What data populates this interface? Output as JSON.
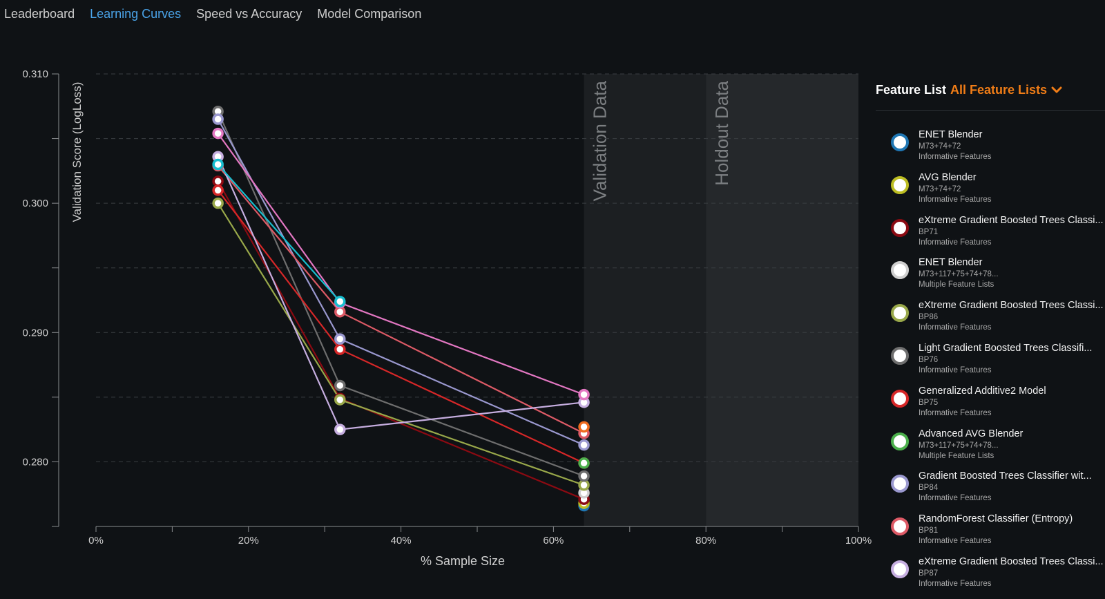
{
  "tabs": [
    {
      "label": "Leaderboard",
      "active": false
    },
    {
      "label": "Learning Curves",
      "active": true
    },
    {
      "label": "Speed vs Accuracy",
      "active": false
    },
    {
      "label": "Model Comparison",
      "active": false
    }
  ],
  "chart_data": {
    "type": "line",
    "xlabel": "% Sample Size",
    "ylabel": "Validation Score (LogLoss)",
    "x_ticks": [
      "0%",
      "20%",
      "40%",
      "60%",
      "80%",
      "100%"
    ],
    "y_ticks": [
      "0.310",
      "0.300",
      "0.290",
      "0.280"
    ],
    "xlim": [
      0,
      100
    ],
    "ylim": [
      0.275,
      0.31
    ],
    "grid": "horizontal dashed",
    "regions": [
      {
        "label": "Validation Data",
        "from": 64,
        "to": 80
      },
      {
        "label": "Holdout Data",
        "from": 80,
        "to": 100
      }
    ],
    "x": [
      16,
      32,
      64
    ],
    "series": [
      {
        "name": "ENET Blender",
        "color": "#1f77b4",
        "values": [
          null,
          null,
          0.2766
        ]
      },
      {
        "name": "AVG Blender",
        "color": "#bcbd22",
        "values": [
          null,
          null,
          0.2768
        ]
      },
      {
        "name": "eXtreme Gradient Boosted Trees Classi...",
        "color": "#8b0a12",
        "values": [
          0.3017,
          0.2849,
          0.2771
        ]
      },
      {
        "name": "ENET Blender",
        "color": "#cfcfcf",
        "values": [
          null,
          null,
          0.2776
        ]
      },
      {
        "name": "eXtreme Gradient Boosted Trees Classi...",
        "color": "#99a84a",
        "values": [
          0.3,
          0.2848,
          0.2782
        ]
      },
      {
        "name": "Light Gradient Boosted Trees Classifi...",
        "color": "#6e6e6e",
        "values": [
          0.3071,
          0.2859,
          0.2789
        ]
      },
      {
        "name": "Generalized Additive2 Model",
        "color": "#d62728",
        "values": [
          0.301,
          0.2887,
          0.2799
        ]
      },
      {
        "name": "Advanced AVG Blender",
        "color": "#4cb04c",
        "values": [
          null,
          null,
          0.2799
        ]
      },
      {
        "name": "Gradient Boosted Trees Classifier wit...",
        "color": "#9a98cf",
        "values": [
          0.3065,
          0.2895,
          0.2813
        ]
      },
      {
        "name": "RandomForest Classifier (Entropy)",
        "color": "#dd5a66",
        "values": [
          0.3029,
          0.2916,
          0.2822
        ]
      },
      {
        "name": "eXtreme Gradient Boosted Trees Classi...",
        "color": "#c6aee0",
        "values": [
          0.3036,
          0.2825,
          0.2846
        ]
      },
      {
        "name": "",
        "color": "#e377c2",
        "values": [
          0.3054,
          0.2923,
          0.2852
        ]
      },
      {
        "name": "",
        "color": "#17becf",
        "values": [
          0.303,
          0.2924,
          null
        ]
      },
      {
        "name": "",
        "color": "#ef6c1e",
        "values": [
          null,
          null,
          0.2827
        ]
      }
    ]
  },
  "feature_list": {
    "label": "Feature List",
    "dropdown": "All Feature Lists",
    "dropdown_icon": "chevron-down-icon",
    "accent_color": "#f07d17"
  },
  "models": [
    {
      "name": "ENET Blender",
      "id": "M73+74+72",
      "features": "Informative Features",
      "color": "#1f77b4"
    },
    {
      "name": "AVG Blender",
      "id": "M73+74+72",
      "features": "Informative Features",
      "color": "#bcbd22"
    },
    {
      "name": "eXtreme Gradient Boosted Trees Classi...",
      "id": "BP71",
      "features": "Informative Features",
      "color": "#8b0a12"
    },
    {
      "name": "ENET Blender",
      "id": "M73+117+75+74+78...",
      "features": "Multiple Feature Lists",
      "color": "#cfcfcf"
    },
    {
      "name": "eXtreme Gradient Boosted Trees Classi...",
      "id": "BP86",
      "features": "Informative Features",
      "color": "#99a84a"
    },
    {
      "name": "Light Gradient Boosted Trees Classifi...",
      "id": "BP76",
      "features": "Informative Features",
      "color": "#6e6e6e"
    },
    {
      "name": "Generalized Additive2 Model",
      "id": "BP75",
      "features": "Informative Features",
      "color": "#d62728"
    },
    {
      "name": "Advanced AVG Blender",
      "id": "M73+117+75+74+78...",
      "features": "Multiple Feature Lists",
      "color": "#4cb04c"
    },
    {
      "name": "Gradient Boosted Trees Classifier wit...",
      "id": "BP84",
      "features": "Informative Features",
      "color": "#9a98cf"
    },
    {
      "name": "RandomForest Classifier (Entropy)",
      "id": "BP81",
      "features": "Informative Features",
      "color": "#dd5a66"
    },
    {
      "name": "eXtreme Gradient Boosted Trees Classi...",
      "id": "BP87",
      "features": "Informative Features",
      "color": "#c6aee0"
    }
  ]
}
